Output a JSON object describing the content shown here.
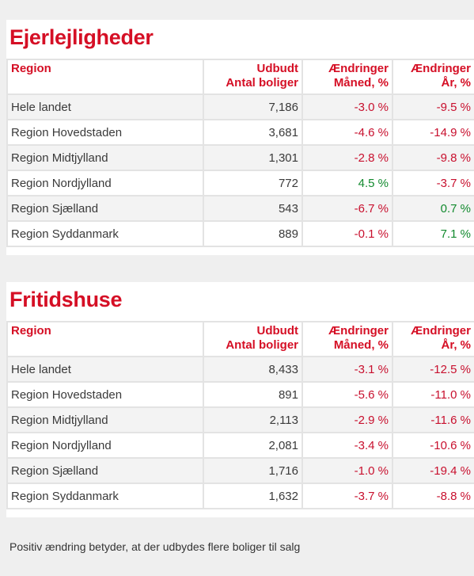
{
  "headers": {
    "region": "Region",
    "supply_line1": "Udbudt",
    "supply_line2": "Antal boliger",
    "month_line1": "Ændringer",
    "month_line2": "Måned, %",
    "year_line1": "Ændringer",
    "year_line2": "År, %"
  },
  "sections": [
    {
      "title": "Ejerlejligheder",
      "rows": [
        {
          "region": "Hele landet",
          "supply": "7,186",
          "month": "-3.0 %",
          "year": "-9.5 %"
        },
        {
          "region": "Region Hovedstaden",
          "supply": "3,681",
          "month": "-4.6 %",
          "year": "-14.9 %"
        },
        {
          "region": "Region Midtjylland",
          "supply": "1,301",
          "month": "-2.8 %",
          "year": "-9.8 %"
        },
        {
          "region": "Region Nordjylland",
          "supply": "772",
          "month": "4.5 %",
          "year": "-3.7 %"
        },
        {
          "region": "Region Sjælland",
          "supply": "543",
          "month": "-6.7 %",
          "year": "0.7 %"
        },
        {
          "region": "Region Syddanmark",
          "supply": "889",
          "month": "-0.1 %",
          "year": "7.1 %"
        }
      ]
    },
    {
      "title": "Fritidshuse",
      "rows": [
        {
          "region": "Hele landet",
          "supply": "8,433",
          "month": "-3.1 %",
          "year": "-12.5 %"
        },
        {
          "region": "Region Hovedstaden",
          "supply": "891",
          "month": "-5.6 %",
          "year": "-11.0 %"
        },
        {
          "region": "Region Midtjylland",
          "supply": "2,113",
          "month": "-2.9 %",
          "year": "-11.6 %"
        },
        {
          "region": "Region Nordjylland",
          "supply": "2,081",
          "month": "-3.4 %",
          "year": "-10.6 %"
        },
        {
          "region": "Region Sjælland",
          "supply": "1,716",
          "month": "-1.0 %",
          "year": "-19.4 %"
        },
        {
          "region": "Region Syddanmark",
          "supply": "1,632",
          "month": "-3.7 %",
          "year": "-8.8 %"
        }
      ]
    }
  ],
  "footer_note": "Positiv ændring betyder, at der udbydes flere boliger til salg",
  "colors": {
    "title_red": "#d50f25",
    "negative_red": "#c8102e",
    "positive_green": "#128a2e"
  }
}
